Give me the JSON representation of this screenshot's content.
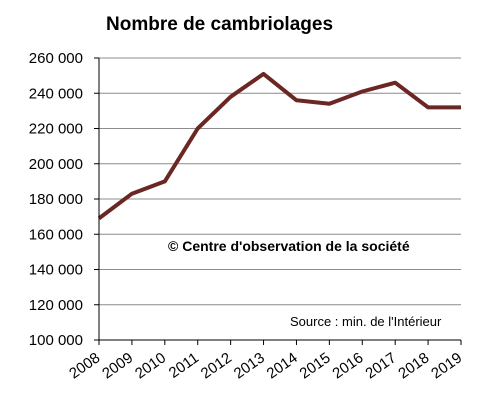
{
  "chart_data": {
    "type": "line",
    "title": "Nombre de cambriolages",
    "xlabel": "",
    "ylabel": "",
    "x": [
      "2008",
      "2009",
      "2010",
      "2011",
      "2012",
      "2013",
      "2014",
      "2015",
      "2016",
      "2017",
      "2018",
      "2019"
    ],
    "series": [
      {
        "values": [
          169000,
          183000,
          190000,
          220000,
          238000,
          251000,
          236000,
          234000,
          241000,
          246000,
          232000,
          232000
        ]
      }
    ],
    "ylim": [
      100000,
      260000
    ],
    "yticks": [
      "100 000",
      "120 000",
      "140 000",
      "160 000",
      "180 000",
      "200 000",
      "220 000",
      "240 000",
      "260 000"
    ],
    "grid": true,
    "line_color": "#6b2723",
    "annotations": {
      "copyright": "© Centre d'observation de la société",
      "source": "Source : min. de l'Intérieur"
    }
  }
}
